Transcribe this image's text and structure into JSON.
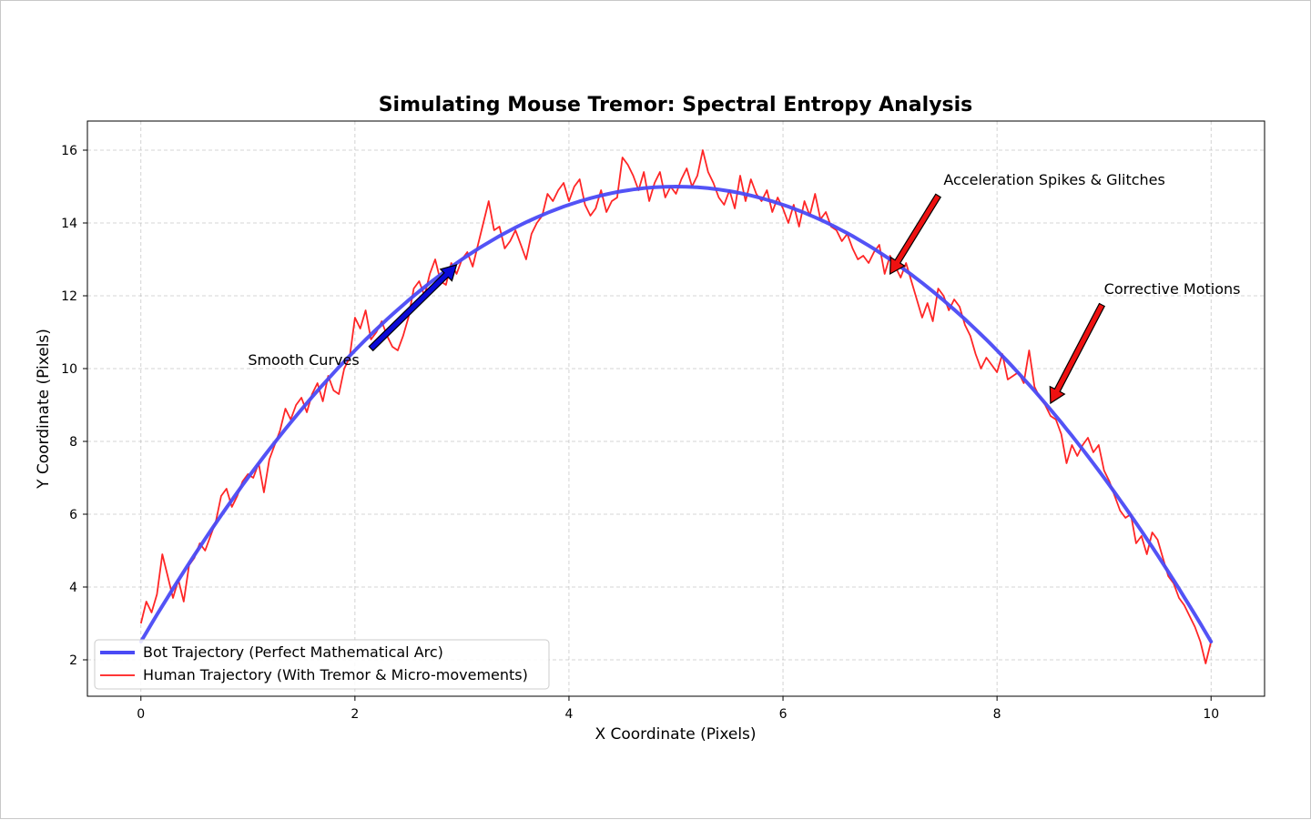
{
  "chart_data": {
    "type": "line",
    "title": "Simulating Mouse Tremor: Spectral Entropy Analysis",
    "xlabel": "X Coordinate (Pixels)",
    "ylabel": "Y Coordinate (Pixels)",
    "xlim": [
      -0.5,
      10.5
    ],
    "ylim": [
      1.0,
      16.8
    ],
    "xticks": [
      0,
      2,
      4,
      6,
      8,
      10
    ],
    "yticks": [
      2,
      4,
      6,
      8,
      10,
      12,
      14,
      16
    ],
    "grid": true,
    "legend_position": "lower-left",
    "series": [
      {
        "name": "Bot Trajectory (Perfect Mathematical Arc)",
        "color": "#4a4af5",
        "style": "thick-solid",
        "function": "y = 15 - 0.5*(x-5)^2",
        "x_range": [
          0,
          10
        ],
        "points": [
          [
            0,
            2.5
          ],
          [
            1,
            7.0
          ],
          [
            2,
            10.5
          ],
          [
            3,
            13.0
          ],
          [
            4,
            14.5
          ],
          [
            5,
            15.0
          ],
          [
            6,
            14.5
          ],
          [
            7,
            13.0
          ],
          [
            8,
            10.5
          ],
          [
            9,
            7.0
          ],
          [
            10,
            2.5
          ]
        ]
      },
      {
        "name": "Human Trajectory (With Tremor & Micro-movements)",
        "color": "#ff1a1a",
        "style": "thin-solid",
        "points": [
          [
            0.0,
            3.0
          ],
          [
            0.05,
            3.6
          ],
          [
            0.1,
            3.3
          ],
          [
            0.15,
            3.8
          ],
          [
            0.2,
            4.9
          ],
          [
            0.25,
            4.3
          ],
          [
            0.3,
            3.7
          ],
          [
            0.35,
            4.2
          ],
          [
            0.4,
            3.6
          ],
          [
            0.45,
            4.6
          ],
          [
            0.5,
            4.8
          ],
          [
            0.55,
            5.2
          ],
          [
            0.6,
            5.0
          ],
          [
            0.65,
            5.4
          ],
          [
            0.7,
            5.8
          ],
          [
            0.75,
            6.5
          ],
          [
            0.8,
            6.7
          ],
          [
            0.85,
            6.2
          ],
          [
            0.9,
            6.5
          ],
          [
            0.95,
            6.9
          ],
          [
            1.0,
            7.1
          ],
          [
            1.05,
            7.0
          ],
          [
            1.1,
            7.4
          ],
          [
            1.15,
            6.6
          ],
          [
            1.2,
            7.5
          ],
          [
            1.25,
            7.9
          ],
          [
            1.3,
            8.3
          ],
          [
            1.35,
            8.9
          ],
          [
            1.4,
            8.6
          ],
          [
            1.45,
            9.0
          ],
          [
            1.5,
            9.2
          ],
          [
            1.55,
            8.8
          ],
          [
            1.6,
            9.3
          ],
          [
            1.65,
            9.6
          ],
          [
            1.7,
            9.1
          ],
          [
            1.75,
            9.8
          ],
          [
            1.8,
            9.4
          ],
          [
            1.85,
            9.3
          ],
          [
            1.9,
            10.0
          ],
          [
            1.95,
            10.3
          ],
          [
            2.0,
            11.4
          ],
          [
            2.05,
            11.1
          ],
          [
            2.1,
            11.6
          ],
          [
            2.15,
            10.8
          ],
          [
            2.2,
            11.0
          ],
          [
            2.25,
            11.3
          ],
          [
            2.3,
            10.9
          ],
          [
            2.35,
            10.6
          ],
          [
            2.4,
            10.5
          ],
          [
            2.45,
            10.9
          ],
          [
            2.5,
            11.4
          ],
          [
            2.55,
            12.2
          ],
          [
            2.6,
            12.4
          ],
          [
            2.65,
            12.0
          ],
          [
            2.7,
            12.6
          ],
          [
            2.75,
            13.0
          ],
          [
            2.8,
            12.4
          ],
          [
            2.85,
            12.3
          ],
          [
            2.9,
            12.9
          ],
          [
            2.95,
            12.6
          ],
          [
            3.0,
            13.0
          ],
          [
            3.05,
            13.2
          ],
          [
            3.1,
            12.8
          ],
          [
            3.15,
            13.4
          ],
          [
            3.2,
            14.0
          ],
          [
            3.25,
            14.6
          ],
          [
            3.3,
            13.8
          ],
          [
            3.35,
            13.9
          ],
          [
            3.4,
            13.3
          ],
          [
            3.45,
            13.5
          ],
          [
            3.5,
            13.8
          ],
          [
            3.55,
            13.4
          ],
          [
            3.6,
            13.0
          ],
          [
            3.65,
            13.7
          ],
          [
            3.7,
            14.0
          ],
          [
            3.75,
            14.2
          ],
          [
            3.8,
            14.8
          ],
          [
            3.85,
            14.6
          ],
          [
            3.9,
            14.9
          ],
          [
            3.95,
            15.1
          ],
          [
            4.0,
            14.6
          ],
          [
            4.05,
            15.0
          ],
          [
            4.1,
            15.2
          ],
          [
            4.15,
            14.5
          ],
          [
            4.2,
            14.2
          ],
          [
            4.25,
            14.4
          ],
          [
            4.3,
            14.9
          ],
          [
            4.35,
            14.3
          ],
          [
            4.4,
            14.6
          ],
          [
            4.45,
            14.7
          ],
          [
            4.5,
            15.8
          ],
          [
            4.55,
            15.6
          ],
          [
            4.6,
            15.3
          ],
          [
            4.65,
            14.9
          ],
          [
            4.7,
            15.4
          ],
          [
            4.75,
            14.6
          ],
          [
            4.8,
            15.1
          ],
          [
            4.85,
            15.4
          ],
          [
            4.9,
            14.7
          ],
          [
            4.95,
            15.0
          ],
          [
            5.0,
            14.8
          ],
          [
            5.05,
            15.2
          ],
          [
            5.1,
            15.5
          ],
          [
            5.15,
            15.0
          ],
          [
            5.2,
            15.3
          ],
          [
            5.25,
            16.0
          ],
          [
            5.3,
            15.4
          ],
          [
            5.35,
            15.1
          ],
          [
            5.4,
            14.7
          ],
          [
            5.45,
            14.5
          ],
          [
            5.5,
            14.9
          ],
          [
            5.55,
            14.4
          ],
          [
            5.6,
            15.3
          ],
          [
            5.65,
            14.6
          ],
          [
            5.7,
            15.2
          ],
          [
            5.75,
            14.8
          ],
          [
            5.8,
            14.6
          ],
          [
            5.85,
            14.9
          ],
          [
            5.9,
            14.3
          ],
          [
            5.95,
            14.7
          ],
          [
            6.0,
            14.4
          ],
          [
            6.05,
            14.0
          ],
          [
            6.1,
            14.5
          ],
          [
            6.15,
            13.9
          ],
          [
            6.2,
            14.6
          ],
          [
            6.25,
            14.2
          ],
          [
            6.3,
            14.8
          ],
          [
            6.35,
            14.1
          ],
          [
            6.4,
            14.3
          ],
          [
            6.45,
            13.9
          ],
          [
            6.5,
            13.8
          ],
          [
            6.55,
            13.5
          ],
          [
            6.6,
            13.7
          ],
          [
            6.65,
            13.3
          ],
          [
            6.7,
            13.0
          ],
          [
            6.75,
            13.1
          ],
          [
            6.8,
            12.9
          ],
          [
            6.85,
            13.2
          ],
          [
            6.9,
            13.4
          ],
          [
            6.95,
            12.6
          ],
          [
            7.0,
            13.1
          ],
          [
            7.05,
            12.8
          ],
          [
            7.1,
            12.5
          ],
          [
            7.15,
            12.9
          ],
          [
            7.2,
            12.4
          ],
          [
            7.25,
            11.9
          ],
          [
            7.3,
            11.4
          ],
          [
            7.35,
            11.8
          ],
          [
            7.4,
            11.3
          ],
          [
            7.45,
            12.2
          ],
          [
            7.5,
            12.0
          ],
          [
            7.55,
            11.6
          ],
          [
            7.6,
            11.9
          ],
          [
            7.65,
            11.7
          ],
          [
            7.7,
            11.2
          ],
          [
            7.75,
            10.9
          ],
          [
            7.8,
            10.4
          ],
          [
            7.85,
            10.0
          ],
          [
            7.9,
            10.3
          ],
          [
            7.95,
            10.1
          ],
          [
            8.0,
            9.9
          ],
          [
            8.05,
            10.4
          ],
          [
            8.1,
            9.7
          ],
          [
            8.15,
            9.8
          ],
          [
            8.2,
            9.9
          ],
          [
            8.25,
            9.6
          ],
          [
            8.3,
            10.5
          ],
          [
            8.35,
            9.5
          ],
          [
            8.4,
            9.2
          ],
          [
            8.45,
            9.0
          ],
          [
            8.5,
            8.7
          ],
          [
            8.55,
            8.6
          ],
          [
            8.6,
            8.2
          ],
          [
            8.65,
            7.4
          ],
          [
            8.7,
            7.9
          ],
          [
            8.75,
            7.6
          ],
          [
            8.8,
            7.9
          ],
          [
            8.85,
            8.1
          ],
          [
            8.9,
            7.7
          ],
          [
            8.95,
            7.9
          ],
          [
            9.0,
            7.2
          ],
          [
            9.05,
            6.9
          ],
          [
            9.1,
            6.5
          ],
          [
            9.15,
            6.1
          ],
          [
            9.2,
            5.9
          ],
          [
            9.25,
            6.0
          ],
          [
            9.3,
            5.2
          ],
          [
            9.35,
            5.4
          ],
          [
            9.4,
            4.9
          ],
          [
            9.45,
            5.5
          ],
          [
            9.5,
            5.3
          ],
          [
            9.55,
            4.8
          ],
          [
            9.6,
            4.3
          ],
          [
            9.65,
            4.1
          ],
          [
            9.7,
            3.7
          ],
          [
            9.75,
            3.5
          ],
          [
            9.8,
            3.2
          ],
          [
            9.85,
            2.9
          ],
          [
            9.9,
            2.5
          ],
          [
            9.95,
            1.9
          ],
          [
            10.0,
            2.5
          ]
        ]
      }
    ],
    "annotations": [
      {
        "text": "Smooth Curves",
        "text_pos": [
          1.0,
          10.1
        ],
        "arrow_from": [
          2.15,
          10.55
        ],
        "arrow_to": [
          2.95,
          12.85
        ],
        "arrow_color": "#0a0ad8"
      },
      {
        "text": "Acceleration Spikes & Glitches",
        "text_pos": [
          7.5,
          15.05
        ],
        "arrow_from": [
          7.45,
          14.75
        ],
        "arrow_to": [
          7.0,
          12.6
        ],
        "arrow_color": "#ee1111"
      },
      {
        "text": "Corrective Motions",
        "text_pos": [
          9.0,
          12.05
        ],
        "arrow_from": [
          8.98,
          11.75
        ],
        "arrow_to": [
          8.5,
          9.05
        ],
        "arrow_color": "#ee1111"
      }
    ]
  }
}
